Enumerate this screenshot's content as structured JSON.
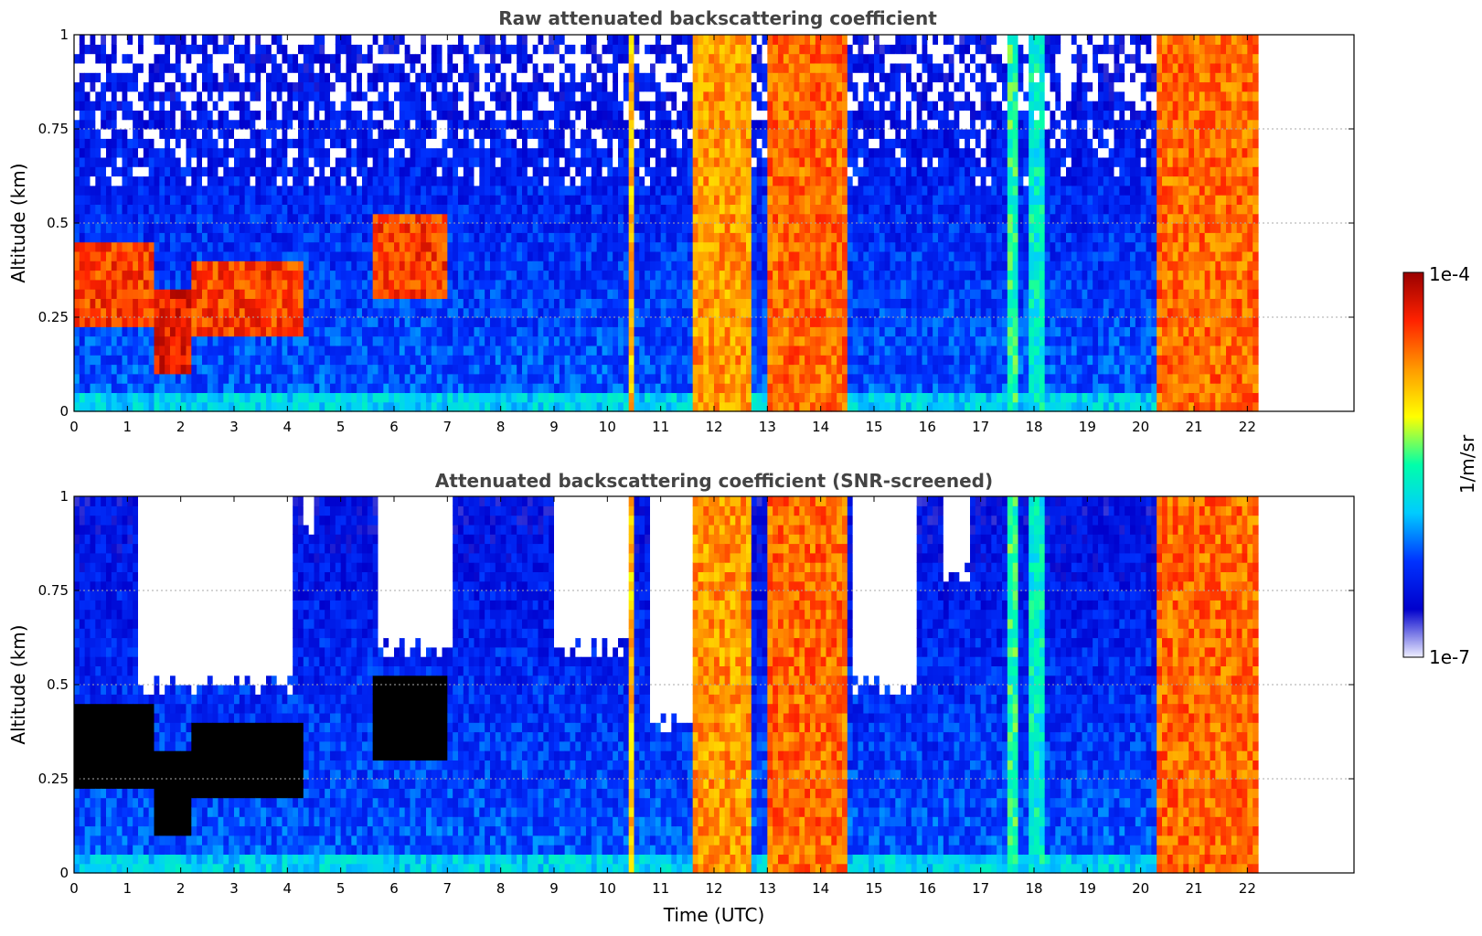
{
  "chart_data": [
    {
      "type": "heatmap",
      "title": "Raw attenuated backscattering coefficient",
      "xlabel": "",
      "ylabel": "Altitude (km)",
      "xlim": [
        0,
        24
      ],
      "ylim": [
        0,
        1
      ],
      "x_ticks": [
        "0",
        "1",
        "2",
        "3",
        "4",
        "5",
        "6",
        "7",
        "8",
        "9",
        "10",
        "11",
        "12",
        "13",
        "14",
        "15",
        "16",
        "17",
        "18",
        "19",
        "20",
        "21",
        "22"
      ],
      "y_ticks": [
        "0",
        "0.25",
        "0.5",
        "0.75",
        "1"
      ],
      "grid": true,
      "data_end_time": 22.2,
      "layers": [
        {
          "t0": 0.0,
          "t1": 1.5,
          "base": 0.22,
          "top": 0.45,
          "level": 0.85
        },
        {
          "t0": 1.5,
          "t1": 2.2,
          "base": 0.1,
          "top": 0.33,
          "level": 0.9
        },
        {
          "t0": 2.2,
          "t1": 4.3,
          "base": 0.2,
          "top": 0.4,
          "level": 0.85
        },
        {
          "t0": 5.6,
          "t1": 7.0,
          "base": 0.3,
          "top": 0.52,
          "level": 0.85
        },
        {
          "t0": 11.6,
          "t1": 12.7,
          "base": 0.0,
          "top": 1.0,
          "level": 0.75
        },
        {
          "t0": 13.0,
          "t1": 14.5,
          "base": 0.0,
          "top": 1.0,
          "level": 0.8
        },
        {
          "t0": 20.3,
          "t1": 22.2,
          "base": 0.0,
          "top": 1.0,
          "level": 0.8
        }
      ],
      "columns": [
        {
          "t": 10.45,
          "w": 0.15,
          "level": 0.7
        },
        {
          "t": 17.6,
          "w": 0.25,
          "level": 0.5
        },
        {
          "t": 18.0,
          "w": 0.3,
          "level": 0.45
        }
      ]
    },
    {
      "type": "heatmap",
      "title": "Attenuated backscattering coefficient (SNR-screened)",
      "xlabel": "Time (UTC)",
      "ylabel": "Altitude (km)",
      "xlim": [
        0,
        24
      ],
      "ylim": [
        0,
        1
      ],
      "x_ticks": [
        "0",
        "1",
        "2",
        "3",
        "4",
        "5",
        "6",
        "7",
        "8",
        "9",
        "10",
        "11",
        "12",
        "13",
        "14",
        "15",
        "16",
        "17",
        "18",
        "19",
        "20",
        "21",
        "22"
      ],
      "y_ticks": [
        "0",
        "0.25",
        "0.5",
        "0.75",
        "1"
      ],
      "grid": true,
      "data_end_time": 22.2,
      "screened_regions": [
        {
          "t0": 1.2,
          "t1": 4.1,
          "above": 0.5
        },
        {
          "t0": 4.3,
          "t1": 4.5,
          "above": 0.9
        },
        {
          "t0": 5.7,
          "t1": 7.1,
          "above": 0.6
        },
        {
          "t0": 9.0,
          "t1": 10.4,
          "above": 0.6
        },
        {
          "t0": 10.8,
          "t1": 11.6,
          "above": 0.4
        },
        {
          "t0": 14.6,
          "t1": 15.8,
          "above": 0.5
        },
        {
          "t0": 16.3,
          "t1": 16.8,
          "above": 0.8
        }
      ]
    }
  ],
  "colorbar": {
    "label": "1/m/sr",
    "max_label": "1e-4",
    "min_label": "1e-7",
    "scale": "log",
    "colormap": "jet",
    "colors": [
      "#eeeeff",
      "#0000cc",
      "#0033ff",
      "#00ccff",
      "#00ffaa",
      "#ffff00",
      "#ff9900",
      "#ff2200",
      "#990000"
    ]
  }
}
